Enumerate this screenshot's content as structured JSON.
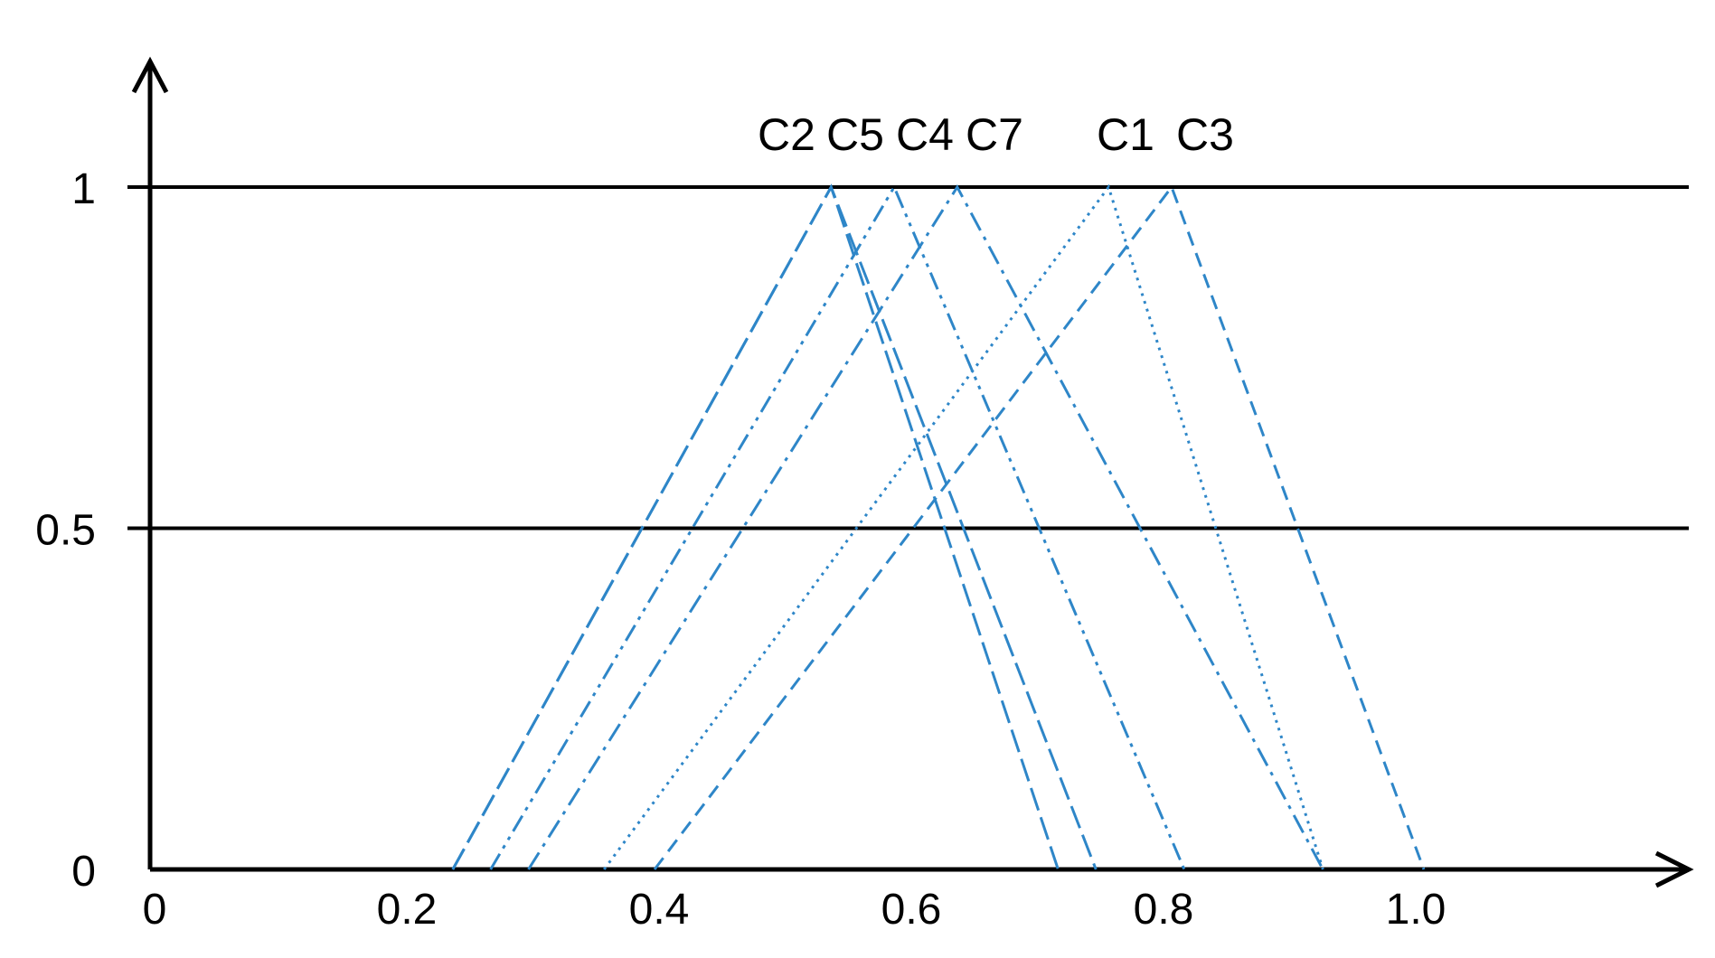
{
  "chart_data": {
    "type": "line",
    "title": "",
    "xlabel": "",
    "ylabel": "",
    "xlim": [
      0,
      1.2
    ],
    "ylim": [
      0,
      1.15
    ],
    "grid": false,
    "x_tick_labels": [
      "0",
      "0.2",
      "0.4",
      "0.6",
      "0.8",
      "1.0"
    ],
    "x_tick_values": [
      0,
      0.2,
      0.4,
      0.6,
      0.8,
      1.0
    ],
    "y_tick_labels": [
      "0",
      "0.5",
      "1"
    ],
    "y_tick_values": [
      0,
      0.5,
      1
    ],
    "reference_lines": [
      0.5,
      1
    ],
    "series_color": "#2e86c8",
    "series": [
      {
        "name": "C2",
        "x": [
          0.24,
          0.54,
          0.72
        ],
        "y": [
          0,
          1,
          0
        ],
        "dash": "long-dash"
      },
      {
        "name": "C5",
        "x": [
          0.24,
          0.54,
          0.75
        ],
        "y": [
          0,
          1,
          0
        ],
        "dash": "long-dash"
      },
      {
        "name": "C4",
        "x": [
          0.27,
          0.59,
          0.82
        ],
        "y": [
          0,
          1,
          0
        ],
        "dash": "dash-dot-dot"
      },
      {
        "name": "C7",
        "x": [
          0.3,
          0.64,
          0.93
        ],
        "y": [
          0,
          1,
          0
        ],
        "dash": "dash-dot"
      },
      {
        "name": "C1",
        "x": [
          0.36,
          0.76,
          0.93
        ],
        "y": [
          0,
          1,
          0
        ],
        "dash": "dotted"
      },
      {
        "name": "C3",
        "x": [
          0.4,
          0.81,
          1.01
        ],
        "y": [
          0,
          1,
          0
        ],
        "dash": "dashed"
      }
    ]
  }
}
